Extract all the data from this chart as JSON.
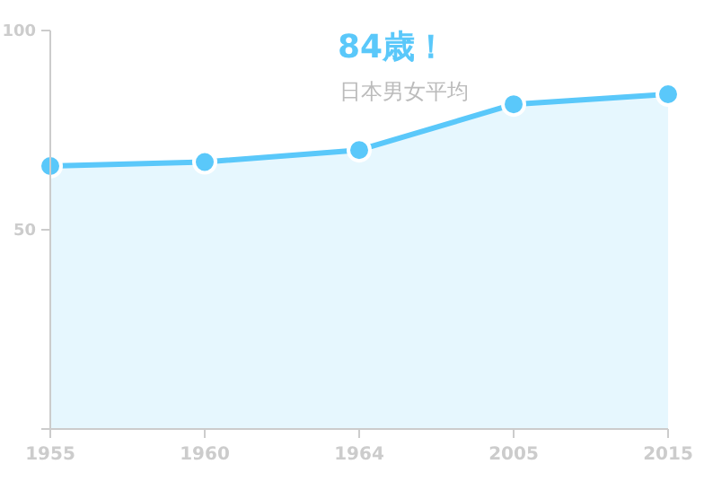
{
  "chart_data": {
    "type": "area",
    "title": "84歳！",
    "subtitle": "日本男女平均",
    "categories": [
      "1955",
      "1960",
      "1964",
      "2005",
      "2015"
    ],
    "series": [
      {
        "color": "#5ac8fa",
        "values": [
          66,
          67,
          70,
          81.5,
          84
        ]
      }
    ],
    "ylim": [
      0,
      100
    ],
    "yticks": [
      {
        "value": 0,
        "label": null
      },
      50,
      100
    ],
    "marker": "circle",
    "grid": false
  }
}
